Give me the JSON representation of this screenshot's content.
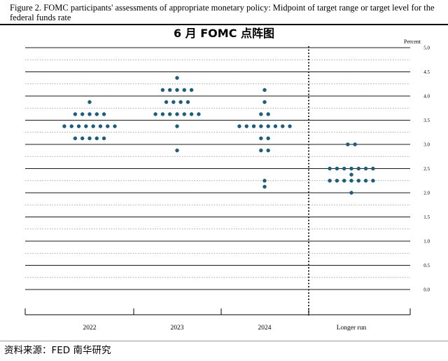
{
  "figure_caption": "Figure 2. FOMC participants' assessments of appropriate monetary policy: Midpoint of target range or target level for the federal funds rate",
  "source_note": "资料来源：FED 南华研究",
  "chart_data": {
    "type": "scatter",
    "title": "6 月 FOMC 点阵图",
    "ylabel": "Percent",
    "ylim": [
      0.0,
      5.0
    ],
    "yticks": [
      "0.0",
      "0.5",
      "1.0",
      "1.5",
      "2.0",
      "2.5",
      "3.0",
      "3.5",
      "4.0",
      "4.5",
      "5.0"
    ],
    "categories": [
      "2022",
      "2023",
      "2024",
      "Longer run"
    ],
    "grid": true,
    "dot_color": "#1f5d7a",
    "dots": [
      {
        "category": "2022",
        "rates": [
          {
            "value": 3.875,
            "count": 1
          },
          {
            "value": 3.625,
            "count": 5
          },
          {
            "value": 3.375,
            "count": 8
          },
          {
            "value": 3.125,
            "count": 5
          }
        ]
      },
      {
        "category": "2023",
        "rates": [
          {
            "value": 4.375,
            "count": 1
          },
          {
            "value": 4.125,
            "count": 5
          },
          {
            "value": 3.875,
            "count": 4
          },
          {
            "value": 3.625,
            "count": 7
          },
          {
            "value": 3.375,
            "count": 1
          },
          {
            "value": 2.875,
            "count": 1
          }
        ]
      },
      {
        "category": "2024",
        "rates": [
          {
            "value": 4.125,
            "count": 1
          },
          {
            "value": 3.875,
            "count": 1
          },
          {
            "value": 3.625,
            "count": 2
          },
          {
            "value": 3.375,
            "count": 8
          },
          {
            "value": 3.125,
            "count": 2
          },
          {
            "value": 2.875,
            "count": 2
          },
          {
            "value": 2.25,
            "count": 1
          },
          {
            "value": 2.125,
            "count": 1
          }
        ]
      },
      {
        "category": "Longer run",
        "rates": [
          {
            "value": 3.0,
            "count": 2
          },
          {
            "value": 2.5,
            "count": 7
          },
          {
            "value": 2.375,
            "count": 1
          },
          {
            "value": 2.25,
            "count": 7
          },
          {
            "value": 2.0,
            "count": 1
          }
        ]
      }
    ]
  }
}
